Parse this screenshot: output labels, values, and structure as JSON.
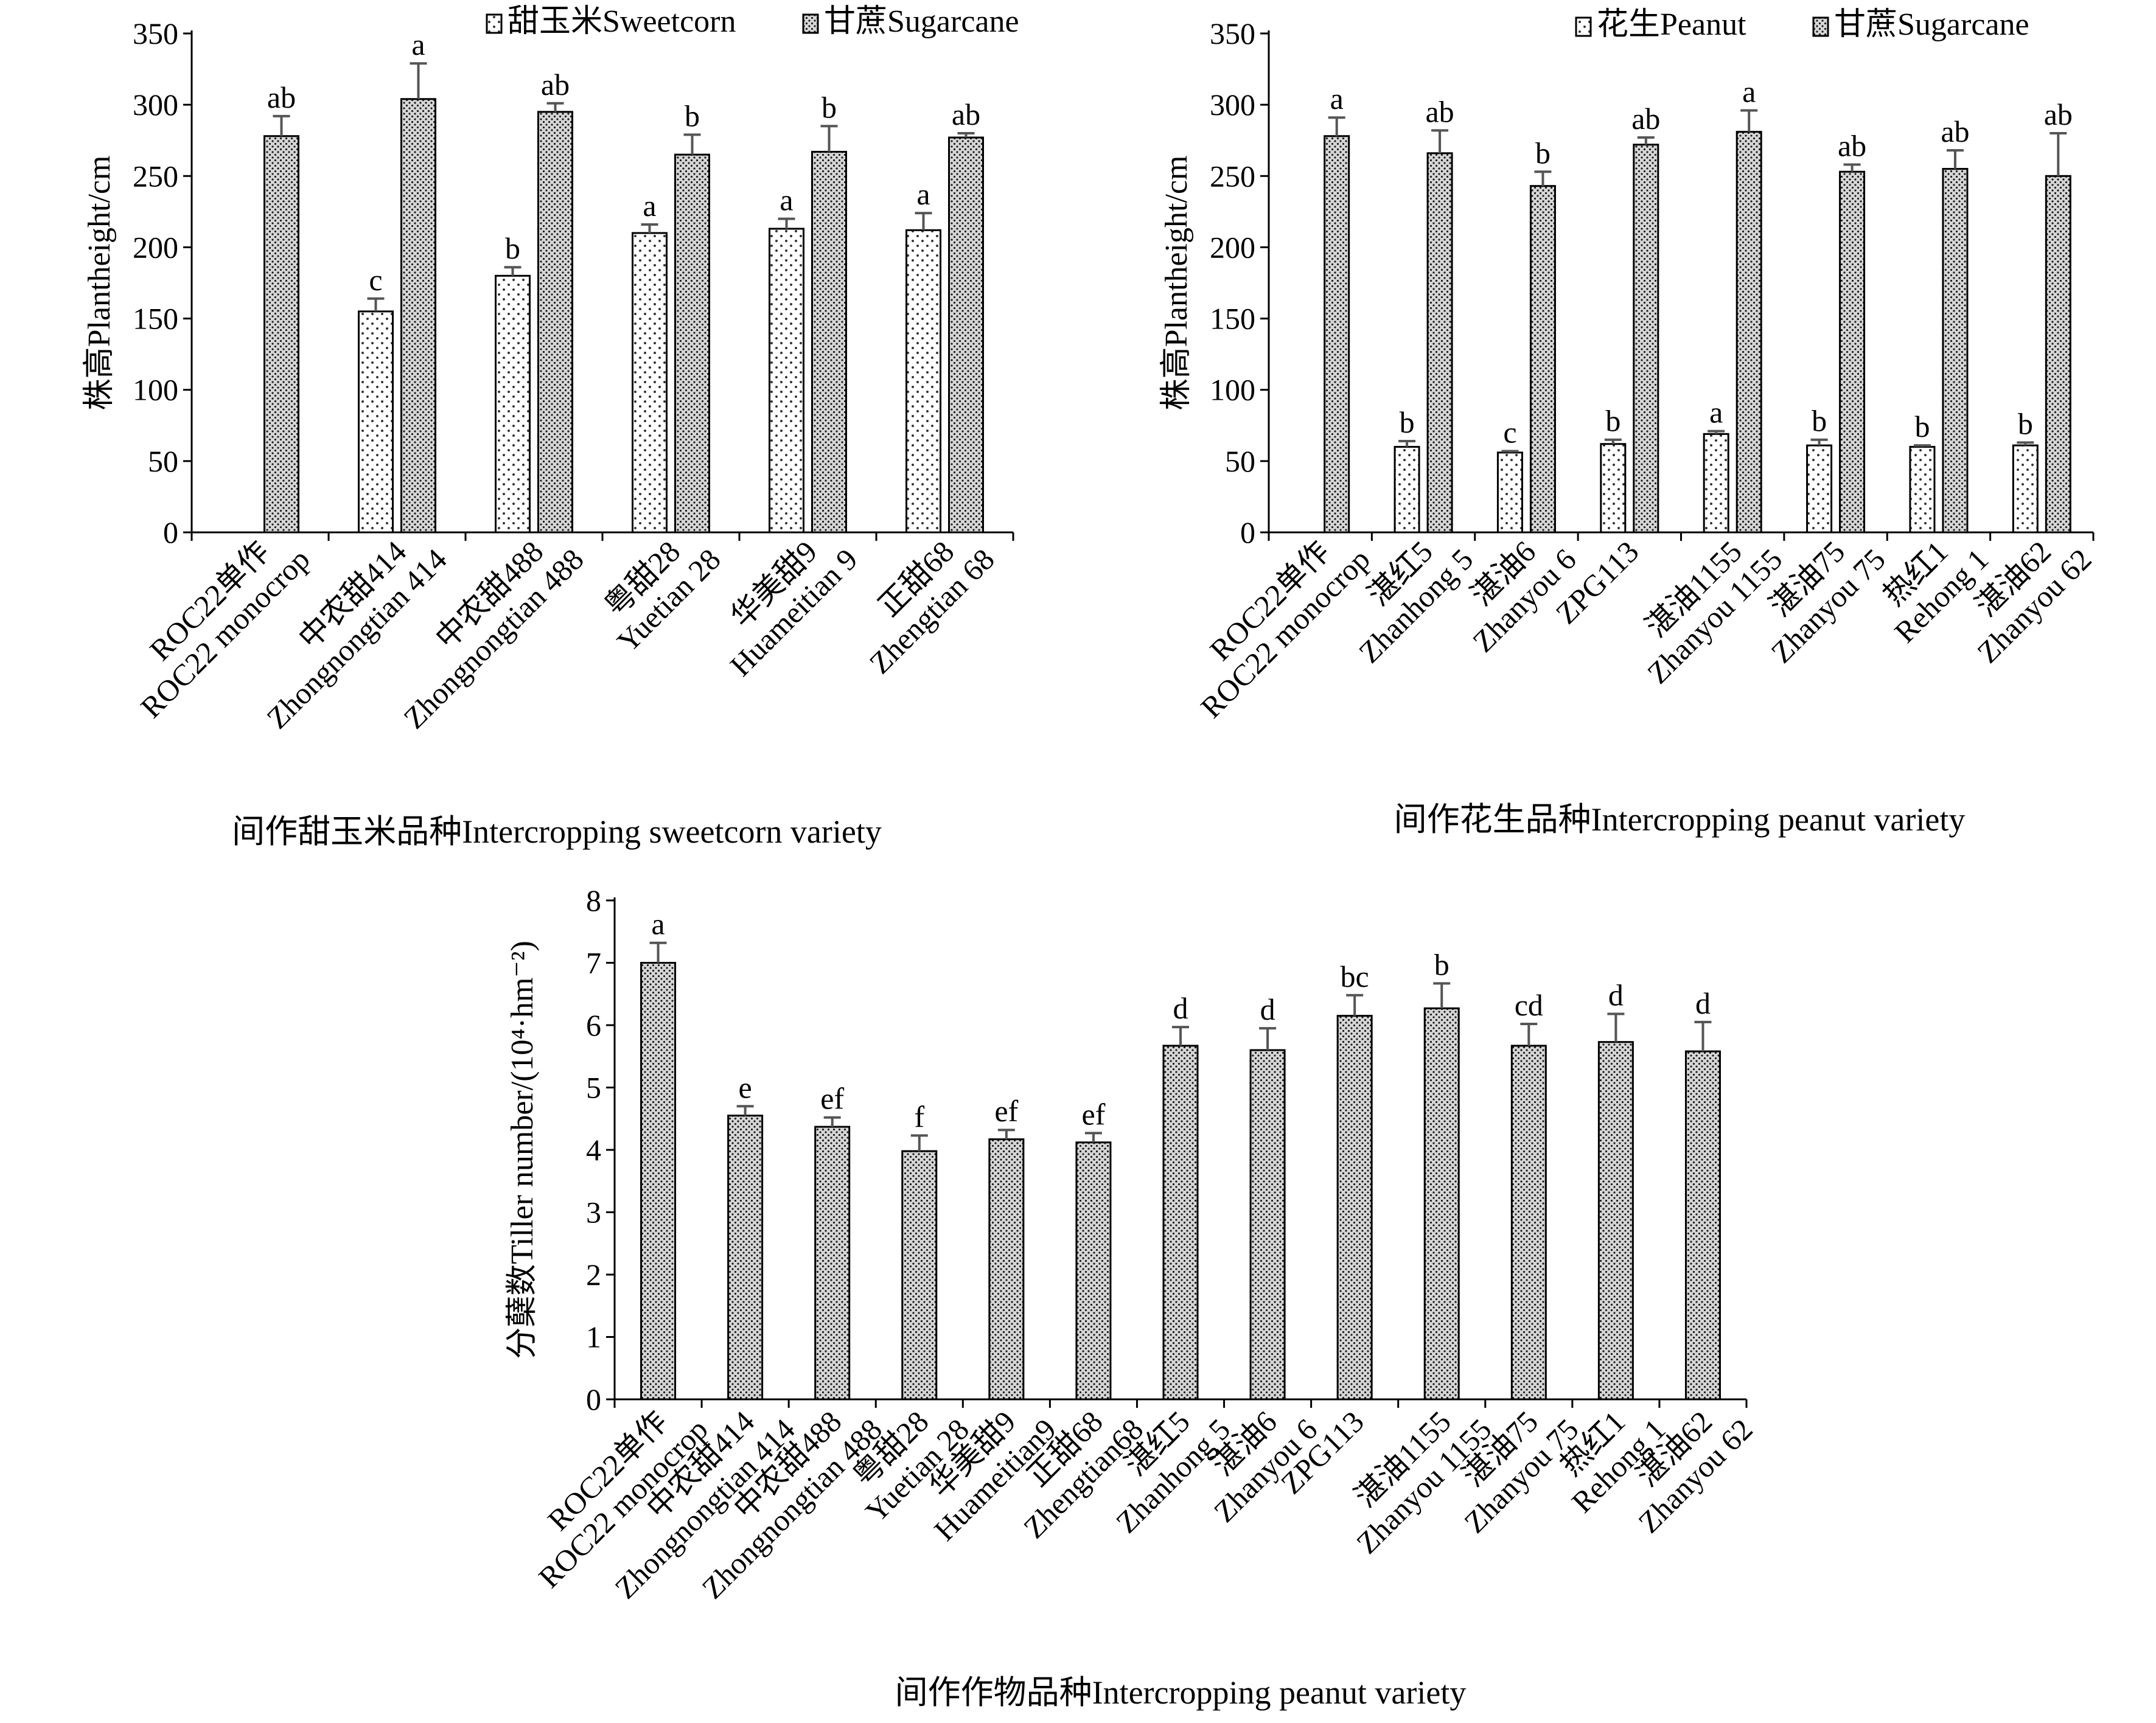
{
  "chart_data": [
    {
      "type": "bar",
      "panel": "top-left",
      "ylabel": "株高Plantheight/cm",
      "xlabel": "间作甜玉米品种Intercropping sweetcorn variety",
      "ylim": [
        0,
        350
      ],
      "yticks": [
        "0",
        "50",
        "100",
        "150",
        "200",
        "250",
        "300",
        "350"
      ],
      "grid": false,
      "legend_position": "top-right",
      "categories": [
        {
          "zh": "ROC22单作",
          "en": "ROC22 monocrop"
        },
        {
          "zh": "中农甜414",
          "en": "Zhongnongtian 414"
        },
        {
          "zh": "中农甜488",
          "en": "Zhongnongtian 488"
        },
        {
          "zh": "粤甜28",
          "en": "Yuetian 28"
        },
        {
          "zh": "华美甜9",
          "en": "Huameitian 9"
        },
        {
          "zh": "正甜68",
          "en": "Zhengtian 68"
        }
      ],
      "series": [
        {
          "name": "甜玉米Sweetcorn",
          "pattern": "sparse-dots",
          "values": [
            null,
            155,
            180,
            210,
            213,
            212
          ],
          "errors": [
            null,
            9,
            6,
            6,
            7,
            12
          ],
          "labels": [
            "",
            "c",
            "b",
            "a",
            "a",
            "a"
          ]
        },
        {
          "name": "甘蔗Sugarcane",
          "pattern": "dense-dots",
          "values": [
            278,
            304,
            295,
            265,
            267,
            277
          ],
          "errors": [
            14,
            25,
            6,
            14,
            18,
            3
          ],
          "labels": [
            "ab",
            "a",
            "ab",
            "b",
            "b",
            "ab"
          ]
        }
      ]
    },
    {
      "type": "bar",
      "panel": "top-right",
      "ylabel": "株高Plantheight/cm",
      "xlabel": "间作花生品种Intercropping peanut variety",
      "ylim": [
        0,
        350
      ],
      "yticks": [
        "0",
        "50",
        "100",
        "150",
        "200",
        "250",
        "300",
        "350"
      ],
      "grid": false,
      "legend_position": "top-right",
      "categories": [
        {
          "zh": "ROC22单作",
          "en": "ROC22 monocrop"
        },
        {
          "zh": "湛红5",
          "en": "Zhanhong 5"
        },
        {
          "zh": "湛油6",
          "en": "Zhanyou 6"
        },
        {
          "zh": "ZPG113",
          "en": ""
        },
        {
          "zh": "湛油1155",
          "en": "Zhanyou 1155"
        },
        {
          "zh": "湛油75",
          "en": "Zhanyou 75"
        },
        {
          "zh": "热红1",
          "en": "Rehong 1"
        },
        {
          "zh": "湛油62",
          "en": "Zhanyou 62"
        }
      ],
      "series": [
        {
          "name": "花生Peanut",
          "pattern": "sparse-dots",
          "values": [
            null,
            60,
            56,
            62,
            69,
            61,
            60,
            61
          ],
          "errors": [
            null,
            4,
            1,
            3,
            2,
            4,
            1,
            2
          ],
          "labels": [
            "",
            "b",
            "c",
            "b",
            "a",
            "b",
            "b",
            "b"
          ]
        },
        {
          "name": "甘蔗Sugarcane",
          "pattern": "dense-dots",
          "values": [
            278,
            266,
            243,
            272,
            281,
            253,
            255,
            250
          ],
          "errors": [
            13,
            16,
            10,
            5,
            15,
            5,
            13,
            30
          ],
          "labels": [
            "a",
            "ab",
            "b",
            "ab",
            "a",
            "ab",
            "ab",
            "ab"
          ]
        }
      ]
    },
    {
      "type": "bar",
      "panel": "bottom",
      "ylabel": "分蘖数Tiller number/(10⁴·hm⁻²)",
      "xlabel": "间作作物品种Intercropping peanut variety",
      "ylim": [
        0,
        8
      ],
      "yticks": [
        "0",
        "1",
        "2",
        "3",
        "4",
        "5",
        "6",
        "7",
        "8"
      ],
      "grid": false,
      "categories": [
        {
          "zh": "ROC22单作",
          "en": "ROC22 monocrop"
        },
        {
          "zh": "中农甜414",
          "en": "Zhongnongtian 414"
        },
        {
          "zh": "中农甜488",
          "en": "Zhongnongtian 488"
        },
        {
          "zh": "粤甜28",
          "en": "Yuetian 28"
        },
        {
          "zh": "华美甜9",
          "en": "Huameitian9"
        },
        {
          "zh": "正甜68",
          "en": "Zhengtian68"
        },
        {
          "zh": "湛红5",
          "en": "Zhanhong 5"
        },
        {
          "zh": "湛油6",
          "en": "Zhanyou 6"
        },
        {
          "zh": "ZPG113",
          "en": ""
        },
        {
          "zh": "湛油1155",
          "en": "Zhanyou 1155"
        },
        {
          "zh": "湛油75",
          "en": "Zhanyou 75"
        },
        {
          "zh": "热红1",
          "en": "Rehong 1"
        },
        {
          "zh": "湛油62",
          "en": "Zhanyou 62"
        }
      ],
      "series": [
        {
          "name": "",
          "pattern": "dense-dots",
          "values": [
            7.0,
            4.55,
            4.37,
            3.98,
            4.17,
            4.12,
            5.67,
            5.6,
            6.15,
            6.27,
            5.67,
            5.73,
            5.58
          ],
          "errors": [
            0.32,
            0.15,
            0.15,
            0.25,
            0.15,
            0.15,
            0.3,
            0.35,
            0.33,
            0.4,
            0.35,
            0.45,
            0.47
          ],
          "labels": [
            "a",
            "e",
            "ef",
            "f",
            "ef",
            "ef",
            "d",
            "d",
            "bc",
            "b",
            "cd",
            "d",
            "d"
          ]
        }
      ]
    }
  ]
}
